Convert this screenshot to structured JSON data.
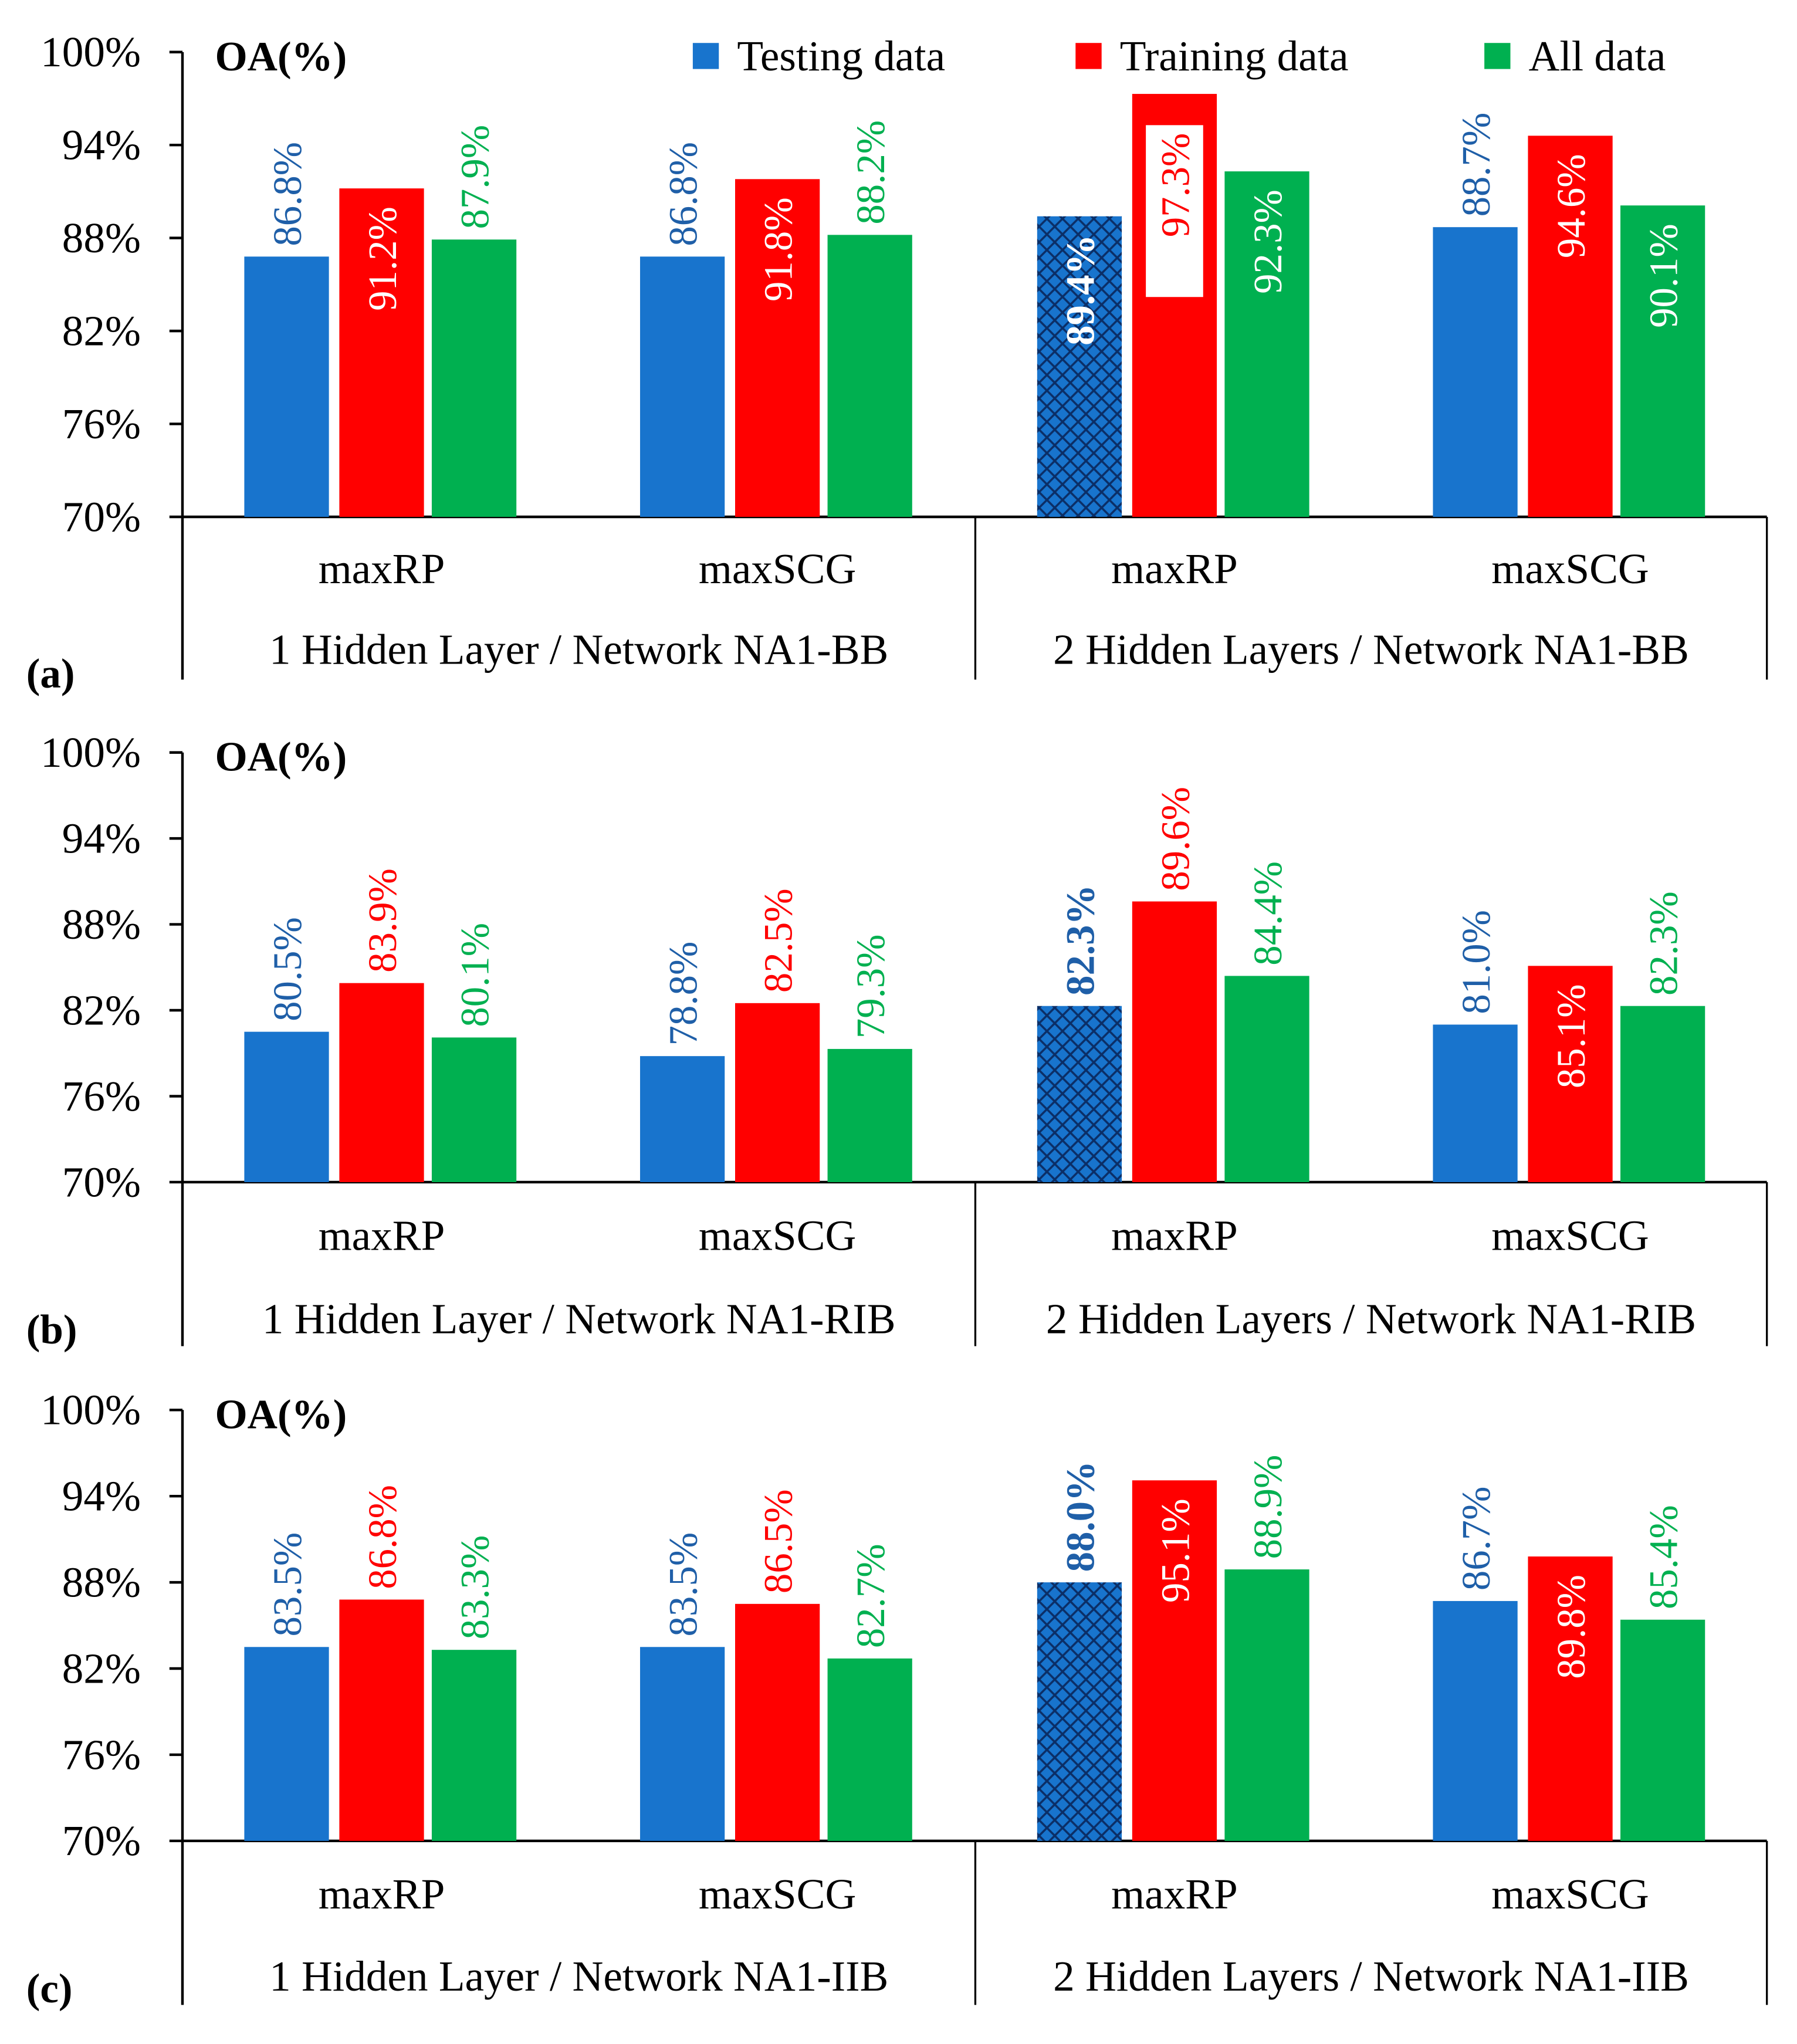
{
  "colors": {
    "testing": "#1874CD",
    "training": "#FF0000",
    "all": "#00B050",
    "testing_text": "#1F5FA8",
    "hatch": "#0B2E66"
  },
  "legend": [
    {
      "key": "testing",
      "label": "Testing data"
    },
    {
      "key": "training",
      "label": "Training data"
    },
    {
      "key": "all",
      "label": "All data"
    }
  ],
  "chart_data": [
    {
      "type": "bar",
      "panel_label": "(a)",
      "ylabel": "OA(%)",
      "ylim": [
        70,
        100
      ],
      "yticks": [
        "70%",
        "76%",
        "82%",
        "88%",
        "94%",
        "100%"
      ],
      "groups": [
        {
          "label": "1 Hidden Layer / Network NA1-BB",
          "categories": [
            {
              "label": "maxRP",
              "bars": [
                {
                  "series": "testing",
                  "value": 86.8,
                  "text": "86.8%",
                  "pos": "above"
                },
                {
                  "series": "training",
                  "value": 91.2,
                  "text": "91.2%",
                  "pos": "inside"
                },
                {
                  "series": "all",
                  "value": 87.9,
                  "text": "87.9%",
                  "pos": "above"
                }
              ]
            },
            {
              "label": "maxSCG",
              "bars": [
                {
                  "series": "testing",
                  "value": 86.8,
                  "text": "86.8%",
                  "pos": "above"
                },
                {
                  "series": "training",
                  "value": 91.8,
                  "text": "91.8%",
                  "pos": "inside"
                },
                {
                  "series": "all",
                  "value": 88.2,
                  "text": "88.2%",
                  "pos": "above"
                }
              ]
            }
          ]
        },
        {
          "label": "2 Hidden Layers / Network NA1-BB",
          "categories": [
            {
              "label": "maxRP",
              "bars": [
                {
                  "series": "testing",
                  "value": 89.4,
                  "text": "89.4%",
                  "pos": "inside",
                  "bold": true,
                  "hatched": true
                },
                {
                  "series": "training",
                  "value": 97.3,
                  "text": "97.3%",
                  "pos": "inside-box"
                },
                {
                  "series": "all",
                  "value": 92.3,
                  "text": "92.3%",
                  "pos": "inside"
                }
              ]
            },
            {
              "label": "maxSCG",
              "bars": [
                {
                  "series": "testing",
                  "value": 88.7,
                  "text": "88.7%",
                  "pos": "above"
                },
                {
                  "series": "training",
                  "value": 94.6,
                  "text": "94.6%",
                  "pos": "inside"
                },
                {
                  "series": "all",
                  "value": 90.1,
                  "text": "90.1%",
                  "pos": "inside"
                }
              ]
            }
          ]
        }
      ]
    },
    {
      "type": "bar",
      "panel_label": "(b)",
      "ylabel": "OA(%)",
      "ylim": [
        70,
        100
      ],
      "yticks": [
        "70%",
        "76%",
        "82%",
        "88%",
        "94%",
        "100%"
      ],
      "groups": [
        {
          "label": "1 Hidden Layer / Network NA1-RIB",
          "categories": [
            {
              "label": "maxRP",
              "bars": [
                {
                  "series": "testing",
                  "value": 80.5,
                  "text": "80.5%",
                  "pos": "above"
                },
                {
                  "series": "training",
                  "value": 83.9,
                  "text": "83.9%",
                  "pos": "above"
                },
                {
                  "series": "all",
                  "value": 80.1,
                  "text": "80.1%",
                  "pos": "above"
                }
              ]
            },
            {
              "label": "maxSCG",
              "bars": [
                {
                  "series": "testing",
                  "value": 78.8,
                  "text": "78.8%",
                  "pos": "above"
                },
                {
                  "series": "training",
                  "value": 82.5,
                  "text": "82.5%",
                  "pos": "above"
                },
                {
                  "series": "all",
                  "value": 79.3,
                  "text": "79.3%",
                  "pos": "above"
                }
              ]
            }
          ]
        },
        {
          "label": "2 Hidden Layers / Network NA1-RIB",
          "categories": [
            {
              "label": "maxRP",
              "bars": [
                {
                  "series": "testing",
                  "value": 82.3,
                  "text": "82.3%",
                  "pos": "above",
                  "bold": true,
                  "hatched": true
                },
                {
                  "series": "training",
                  "value": 89.6,
                  "text": "89.6%",
                  "pos": "above"
                },
                {
                  "series": "all",
                  "value": 84.4,
                  "text": "84.4%",
                  "pos": "above"
                }
              ]
            },
            {
              "label": "maxSCG",
              "bars": [
                {
                  "series": "testing",
                  "value": 81.0,
                  "text": "81.0%",
                  "pos": "above"
                },
                {
                  "series": "training",
                  "value": 85.1,
                  "text": "85.1%",
                  "pos": "inside"
                },
                {
                  "series": "all",
                  "value": 82.3,
                  "text": "82.3%",
                  "pos": "above"
                }
              ]
            }
          ]
        }
      ]
    },
    {
      "type": "bar",
      "panel_label": "(c)",
      "ylabel": "OA(%)",
      "ylim": [
        70,
        100
      ],
      "yticks": [
        "70%",
        "76%",
        "82%",
        "88%",
        "94%",
        "100%"
      ],
      "groups": [
        {
          "label": "1 Hidden Layer / Network NA1-IIB",
          "categories": [
            {
              "label": "maxRP",
              "bars": [
                {
                  "series": "testing",
                  "value": 83.5,
                  "text": "83.5%",
                  "pos": "above"
                },
                {
                  "series": "training",
                  "value": 86.8,
                  "text": "86.8%",
                  "pos": "above"
                },
                {
                  "series": "all",
                  "value": 83.3,
                  "text": "83.3%",
                  "pos": "above"
                }
              ]
            },
            {
              "label": "maxSCG",
              "bars": [
                {
                  "series": "testing",
                  "value": 83.5,
                  "text": "83.5%",
                  "pos": "above"
                },
                {
                  "series": "training",
                  "value": 86.5,
                  "text": "86.5%",
                  "pos": "above"
                },
                {
                  "series": "all",
                  "value": 82.7,
                  "text": "82.7%",
                  "pos": "above"
                }
              ]
            }
          ]
        },
        {
          "label": "2 Hidden Layers / Network NA1-IIB",
          "categories": [
            {
              "label": "maxRP",
              "bars": [
                {
                  "series": "testing",
                  "value": 88.0,
                  "text": "88.0%",
                  "pos": "above",
                  "bold": true,
                  "hatched": true
                },
                {
                  "series": "training",
                  "value": 95.1,
                  "text": "95.1%",
                  "pos": "inside"
                },
                {
                  "series": "all",
                  "value": 88.9,
                  "text": "88.9%",
                  "pos": "above"
                }
              ]
            },
            {
              "label": "maxSCG",
              "bars": [
                {
                  "series": "testing",
                  "value": 86.7,
                  "text": "86.7%",
                  "pos": "above"
                },
                {
                  "series": "training",
                  "value": 89.8,
                  "text": "89.8%",
                  "pos": "inside"
                },
                {
                  "series": "all",
                  "value": 85.4,
                  "text": "85.4%",
                  "pos": "above"
                }
              ]
            }
          ]
        }
      ]
    }
  ]
}
